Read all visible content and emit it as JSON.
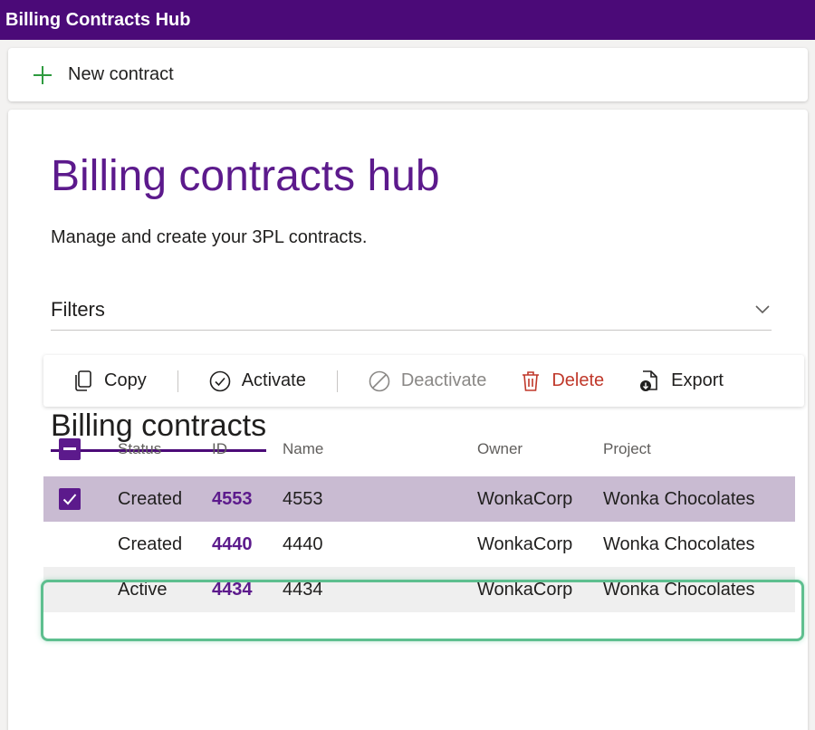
{
  "app": {
    "title": "Billing Contracts Hub"
  },
  "command_bar": {
    "new_label": "New contract",
    "new_icon": "plus-icon"
  },
  "page": {
    "title": "Billing contracts hub",
    "subtitle": "Manage and create your 3PL contracts.",
    "filters_label": "Filters",
    "section_title": "Billing contracts"
  },
  "toolbar": {
    "copy": "Copy",
    "activate": "Activate",
    "deactivate": "Deactivate",
    "delete": "Delete",
    "export": "Export"
  },
  "table": {
    "columns": {
      "status": "Status",
      "id": "ID",
      "name": "Name",
      "owner": "Owner",
      "project": "Project"
    },
    "rows": [
      {
        "status": "Created",
        "id": "4553",
        "name": "4553",
        "owner": "WonkaCorp",
        "project": "Wonka Chocolates",
        "selected": true
      },
      {
        "status": "Created",
        "id": "4440",
        "name": "4440",
        "owner": "WonkaCorp",
        "project": "Wonka Chocolates",
        "selected": false
      },
      {
        "status": "Active",
        "id": "4434",
        "name": "4434",
        "owner": "WonkaCorp",
        "project": "Wonka Chocolates",
        "selected": false
      }
    ]
  },
  "colors": {
    "brand": "#4b0a78",
    "accent": "#5c1a8c",
    "selected_row": "#c9bbd2",
    "highlight": "#5ebf8f",
    "danger": "#c0392b"
  }
}
